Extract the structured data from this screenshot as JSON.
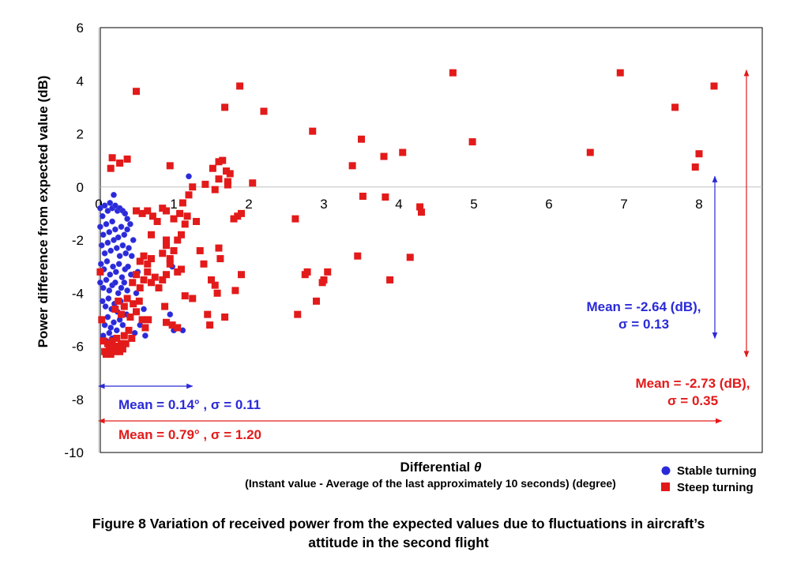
{
  "chart_data": {
    "type": "scatter",
    "title": "",
    "xlabel": "Differential θ",
    "xlabel_main": "Differential ",
    "xlabel_symbol": "θ",
    "xlabel_sub": "(Instant value - Average of the last approximately 10 seconds) (degree)",
    "ylabel": "Power difference from expected value (dB)",
    "xlim": [
      0,
      8.8
    ],
    "ylim": [
      -10,
      6
    ],
    "x_ticks": [
      0,
      1,
      2,
      3,
      4,
      5,
      6,
      7,
      8
    ],
    "x_tick_labels": [
      "0",
      "1",
      "2",
      "3",
      "4",
      "5",
      "6",
      "7",
      "8"
    ],
    "y_ticks": [
      6,
      4,
      2,
      0,
      -2,
      -4,
      -6,
      -8,
      -10
    ],
    "y_tick_labels": [
      "6",
      "4",
      "2",
      "0",
      "-2",
      "-4",
      "-6",
      "-8",
      "-10"
    ],
    "grid": false,
    "zero_lines": true,
    "legend_position": "bottom-right",
    "series": [
      {
        "name": "Stable turning",
        "marker": "circle",
        "color": "#2a2ad8",
        "points": [
          [
            0.02,
            -0.8
          ],
          [
            0.05,
            -1.1
          ],
          [
            0.08,
            -0.7
          ],
          [
            0.12,
            -0.9
          ],
          [
            0.15,
            -0.6
          ],
          [
            0.18,
            -0.8
          ],
          [
            0.22,
            -0.7
          ],
          [
            0.25,
            -0.9
          ],
          [
            0.28,
            -0.8
          ],
          [
            0.32,
            -0.9
          ],
          [
            0.35,
            -1.0
          ],
          [
            0.38,
            -1.2
          ],
          [
            0.2,
            -0.3
          ],
          [
            0.02,
            -1.5
          ],
          [
            0.06,
            -1.8
          ],
          [
            0.1,
            -1.4
          ],
          [
            0.14,
            -1.7
          ],
          [
            0.18,
            -1.3
          ],
          [
            0.22,
            -1.6
          ],
          [
            0.26,
            -1.9
          ],
          [
            0.3,
            -1.5
          ],
          [
            0.34,
            -1.8
          ],
          [
            0.38,
            -1.6
          ],
          [
            0.42,
            -1.4
          ],
          [
            0.04,
            -2.2
          ],
          [
            0.08,
            -2.5
          ],
          [
            0.12,
            -2.1
          ],
          [
            0.16,
            -2.4
          ],
          [
            0.2,
            -2.0
          ],
          [
            0.24,
            -2.3
          ],
          [
            0.28,
            -2.6
          ],
          [
            0.32,
            -2.2
          ],
          [
            0.36,
            -2.5
          ],
          [
            0.4,
            -2.3
          ],
          [
            0.44,
            -2.6
          ],
          [
            0.03,
            -2.9
          ],
          [
            0.07,
            -3.1
          ],
          [
            0.11,
            -2.8
          ],
          [
            0.15,
            -3.3
          ],
          [
            0.19,
            -3.0
          ],
          [
            0.23,
            -3.2
          ],
          [
            0.27,
            -2.9
          ],
          [
            0.31,
            -3.4
          ],
          [
            0.35,
            -3.1
          ],
          [
            0.39,
            -3.0
          ],
          [
            0.43,
            -3.3
          ],
          [
            0.02,
            -3.6
          ],
          [
            0.06,
            -3.8
          ],
          [
            0.1,
            -3.5
          ],
          [
            0.14,
            -3.9
          ],
          [
            0.18,
            -3.7
          ],
          [
            0.22,
            -3.6
          ],
          [
            0.26,
            -4.0
          ],
          [
            0.3,
            -3.8
          ],
          [
            0.34,
            -3.6
          ],
          [
            0.38,
            -3.9
          ],
          [
            0.05,
            -4.3
          ],
          [
            0.09,
            -4.5
          ],
          [
            0.13,
            -4.2
          ],
          [
            0.17,
            -4.6
          ],
          [
            0.21,
            -4.4
          ],
          [
            0.25,
            -4.7
          ],
          [
            0.29,
            -4.3
          ],
          [
            0.33,
            -4.5
          ],
          [
            0.37,
            -4.8
          ],
          [
            0.04,
            -5.0
          ],
          [
            0.08,
            -5.2
          ],
          [
            0.12,
            -4.9
          ],
          [
            0.16,
            -5.3
          ],
          [
            0.2,
            -5.1
          ],
          [
            0.24,
            -5.4
          ],
          [
            0.28,
            -5.0
          ],
          [
            0.32,
            -5.2
          ],
          [
            0.06,
            -5.6
          ],
          [
            0.1,
            -5.8
          ],
          [
            0.14,
            -5.5
          ],
          [
            0.18,
            -5.7
          ],
          [
            0.5,
            -4.0
          ],
          [
            0.55,
            -5.2
          ],
          [
            0.6,
            -4.6
          ],
          [
            0.52,
            -3.2
          ],
          [
            0.46,
            -2.0
          ],
          [
            0.48,
            -5.5
          ],
          [
            0.62,
            -5.6
          ],
          [
            0.95,
            -4.8
          ],
          [
            1.0,
            -5.4
          ],
          [
            1.12,
            -5.4
          ],
          [
            1.2,
            0.4
          ],
          [
            0.98,
            -3.0
          ]
        ]
      },
      {
        "name": "Steep turning",
        "marker": "square",
        "color": "#e31a1a",
        "points": [
          [
            0.5,
            3.6
          ],
          [
            0.18,
            1.1
          ],
          [
            0.28,
            0.9
          ],
          [
            0.38,
            1.05
          ],
          [
            0.16,
            0.7
          ],
          [
            0.95,
            0.8
          ],
          [
            0.02,
            -3.2
          ],
          [
            0.04,
            -5.0
          ],
          [
            0.06,
            -5.8
          ],
          [
            0.08,
            -6.2
          ],
          [
            0.1,
            -6.3
          ],
          [
            0.12,
            -5.9
          ],
          [
            0.14,
            -6.1
          ],
          [
            0.16,
            -6.3
          ],
          [
            0.18,
            -5.8
          ],
          [
            0.2,
            -6.0
          ],
          [
            0.22,
            -6.2
          ],
          [
            0.24,
            -5.7
          ],
          [
            0.26,
            -6.0
          ],
          [
            0.28,
            -6.2
          ],
          [
            0.3,
            -5.9
          ],
          [
            0.32,
            -6.1
          ],
          [
            0.34,
            -5.6
          ],
          [
            0.36,
            -5.9
          ],
          [
            0.4,
            -5.4
          ],
          [
            0.44,
            -5.7
          ],
          [
            0.22,
            -4.6
          ],
          [
            0.26,
            -4.3
          ],
          [
            0.3,
            -4.8
          ],
          [
            0.34,
            -4.5
          ],
          [
            0.38,
            -4.2
          ],
          [
            0.42,
            -4.9
          ],
          [
            0.46,
            -4.4
          ],
          [
            0.5,
            -4.7
          ],
          [
            0.54,
            -4.3
          ],
          [
            0.58,
            -5.0
          ],
          [
            0.62,
            -5.3
          ],
          [
            0.66,
            -5.0
          ],
          [
            0.45,
            -3.6
          ],
          [
            0.5,
            -3.3
          ],
          [
            0.55,
            -3.8
          ],
          [
            0.6,
            -3.5
          ],
          [
            0.65,
            -3.2
          ],
          [
            0.7,
            -3.6
          ],
          [
            0.75,
            -3.4
          ],
          [
            0.8,
            -3.8
          ],
          [
            0.85,
            -3.5
          ],
          [
            0.9,
            -3.3
          ],
          [
            0.55,
            -2.8
          ],
          [
            0.6,
            -2.6
          ],
          [
            0.65,
            -2.9
          ],
          [
            0.7,
            -2.7
          ],
          [
            0.85,
            -2.5
          ],
          [
            0.9,
            -2.2
          ],
          [
            0.95,
            -2.7
          ],
          [
            1.0,
            -2.4
          ],
          [
            1.05,
            -2.0
          ],
          [
            1.1,
            -1.8
          ],
          [
            1.15,
            -1.4
          ],
          [
            1.18,
            -1.1
          ],
          [
            0.5,
            -0.9
          ],
          [
            0.58,
            -1.0
          ],
          [
            0.65,
            -0.9
          ],
          [
            0.72,
            -1.1
          ],
          [
            0.78,
            -1.3
          ],
          [
            0.85,
            -0.8
          ],
          [
            0.9,
            -0.9
          ],
          [
            1.0,
            -1.2
          ],
          [
            1.08,
            -1.0
          ],
          [
            1.12,
            -0.6
          ],
          [
            1.2,
            -0.3
          ],
          [
            1.25,
            0.0
          ],
          [
            0.7,
            -1.8
          ],
          [
            0.9,
            -2.0
          ],
          [
            0.95,
            -2.9
          ],
          [
            1.05,
            -3.2
          ],
          [
            1.1,
            -3.1
          ],
          [
            1.15,
            -4.1
          ],
          [
            1.25,
            -4.2
          ],
          [
            0.88,
            -4.5
          ],
          [
            0.9,
            -5.1
          ],
          [
            0.98,
            -5.2
          ],
          [
            1.05,
            -5.3
          ],
          [
            1.35,
            -2.4
          ],
          [
            1.4,
            -2.9
          ],
          [
            1.42,
            0.1
          ],
          [
            1.3,
            -1.3
          ],
          [
            1.5,
            -3.5
          ],
          [
            1.55,
            -3.7
          ],
          [
            1.58,
            -4.0
          ],
          [
            1.45,
            -4.8
          ],
          [
            1.48,
            -5.2
          ],
          [
            1.6,
            -2.3
          ],
          [
            1.62,
            -2.7
          ],
          [
            1.55,
            -0.1
          ],
          [
            1.6,
            0.3
          ],
          [
            1.52,
            0.7
          ],
          [
            1.6,
            0.95
          ],
          [
            1.65,
            1.0
          ],
          [
            1.7,
            0.6
          ],
          [
            1.72,
            0.2
          ],
          [
            1.72,
            0.08
          ],
          [
            1.75,
            0.5
          ],
          [
            1.68,
            3.0
          ],
          [
            1.88,
            3.8
          ],
          [
            2.2,
            2.85
          ],
          [
            2.05,
            0.15
          ],
          [
            1.8,
            -1.2
          ],
          [
            1.85,
            -1.1
          ],
          [
            1.9,
            -1.0
          ],
          [
            1.68,
            -4.9
          ],
          [
            1.82,
            -3.9
          ],
          [
            1.9,
            -3.3
          ],
          [
            2.62,
            -1.2
          ],
          [
            2.85,
            2.1
          ],
          [
            2.65,
            -4.8
          ],
          [
            2.75,
            -3.3
          ],
          [
            2.78,
            -3.2
          ],
          [
            2.9,
            -4.3
          ],
          [
            2.98,
            -3.6
          ],
          [
            3.0,
            -3.5
          ],
          [
            3.05,
            -3.2
          ],
          [
            3.38,
            0.8
          ],
          [
            3.45,
            -2.6
          ],
          [
            3.5,
            1.8
          ],
          [
            3.52,
            -0.35
          ],
          [
            3.8,
            1.15
          ],
          [
            3.82,
            -0.38
          ],
          [
            3.88,
            -3.5
          ],
          [
            4.05,
            1.3
          ],
          [
            4.15,
            -2.65
          ],
          [
            4.28,
            -0.75
          ],
          [
            4.3,
            -0.95
          ],
          [
            4.72,
            4.3
          ],
          [
            4.98,
            1.7
          ],
          [
            6.55,
            1.3
          ],
          [
            6.95,
            4.3
          ],
          [
            7.68,
            3.0
          ],
          [
            7.95,
            0.75
          ],
          [
            8.0,
            1.25
          ],
          [
            8.2,
            3.8
          ]
        ]
      }
    ],
    "annotations": {
      "stable_y": "Mean = -2.64 (dB),",
      "stable_y_sigma": "σ = 0.13",
      "steep_y": "Mean = -2.73 (dB),",
      "steep_y_sigma": "σ = 0.35",
      "stable_x": "Mean = 0.14°  , σ = 0.11",
      "steep_x": "Mean = 0.79°  , σ = 1.20"
    },
    "annotation_ranges": {
      "stable_y_range": [
        0.4,
        -5.7
      ],
      "steep_y_range": [
        4.4,
        -6.4
      ],
      "stable_x_range": [
        0,
        1.25
      ],
      "steep_x_range": [
        0,
        8.3
      ]
    },
    "colors": {
      "stable": "#2a2ad8",
      "steep": "#e31a1a",
      "axis": "#000000",
      "zero_line": "#bfbfbf"
    }
  },
  "caption": {
    "line1": "Figure 8  Variation of received power from the expected values due to fluctuations in aircraft’s",
    "line2": "attitude in the second flight"
  }
}
